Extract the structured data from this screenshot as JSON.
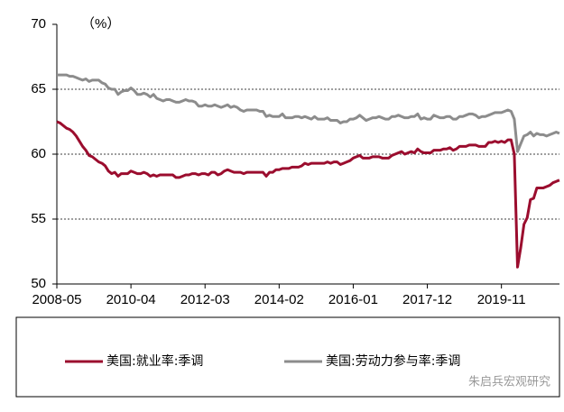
{
  "chart_data": {
    "type": "line",
    "y_unit": "（%）",
    "ylim": [
      50,
      70
    ],
    "yticks": [
      50,
      55,
      60,
      65,
      70
    ],
    "grid": true,
    "categories": [
      "2008-05",
      null,
      null,
      null,
      null,
      null,
      null,
      null,
      null,
      null,
      null,
      null,
      null,
      null,
      null,
      null,
      null,
      null,
      null,
      null,
      null,
      null,
      null,
      "2010-04",
      null,
      null,
      null,
      null,
      null,
      null,
      null,
      null,
      null,
      null,
      null,
      null,
      null,
      null,
      null,
      null,
      null,
      null,
      null,
      null,
      null,
      null,
      "2012-03",
      null,
      null,
      null,
      null,
      null,
      null,
      null,
      null,
      null,
      null,
      null,
      null,
      null,
      null,
      null,
      null,
      null,
      null,
      null,
      null,
      null,
      null,
      "2014-02",
      null,
      null,
      null,
      null,
      null,
      null,
      null,
      null,
      null,
      null,
      null,
      null,
      null,
      null,
      null,
      null,
      null,
      null,
      null,
      null,
      null,
      null,
      "2016-01",
      null,
      null,
      null,
      null,
      null,
      null,
      null,
      null,
      null,
      null,
      null,
      null,
      null,
      null,
      null,
      null,
      null,
      null,
      null,
      null,
      null,
      null,
      "2017-12",
      null,
      null,
      null,
      null,
      null,
      null,
      null,
      null,
      null,
      null,
      null,
      null,
      null,
      null,
      null,
      null,
      null,
      null,
      null,
      null,
      null,
      null,
      "2019-11",
      null,
      null,
      null,
      null,
      null,
      null,
      null,
      null,
      null,
      null,
      null,
      null,
      null,
      null,
      null,
      null,
      null,
      null
    ],
    "series": [
      {
        "name": "美国:就业率:季调",
        "color": "#9b0d2e",
        "values": [
          62.5,
          62.4,
          62.2,
          62.0,
          61.9,
          61.7,
          61.4,
          61.0,
          60.6,
          60.3,
          59.9,
          59.8,
          59.6,
          59.4,
          59.3,
          59.1,
          58.7,
          58.5,
          58.6,
          58.3,
          58.5,
          58.5,
          58.5,
          58.7,
          58.6,
          58.5,
          58.5,
          58.6,
          58.5,
          58.3,
          58.4,
          58.3,
          58.4,
          58.4,
          58.4,
          58.4,
          58.4,
          58.2,
          58.2,
          58.3,
          58.4,
          58.4,
          58.5,
          58.5,
          58.4,
          58.5,
          58.5,
          58.4,
          58.6,
          58.6,
          58.4,
          58.5,
          58.7,
          58.8,
          58.7,
          58.6,
          58.6,
          58.6,
          58.5,
          58.6,
          58.6,
          58.6,
          58.6,
          58.6,
          58.6,
          58.3,
          58.6,
          58.6,
          58.8,
          58.8,
          58.9,
          58.9,
          58.9,
          59.0,
          59.0,
          59.0,
          59.1,
          59.3,
          59.2,
          59.3,
          59.3,
          59.3,
          59.3,
          59.3,
          59.4,
          59.3,
          59.4,
          59.4,
          59.2,
          59.3,
          59.4,
          59.5,
          59.7,
          59.8,
          59.9,
          59.7,
          59.7,
          59.7,
          59.8,
          59.8,
          59.8,
          59.7,
          59.7,
          59.7,
          59.9,
          60.0,
          60.1,
          60.2,
          60.0,
          60.1,
          60.2,
          60.1,
          60.4,
          60.2,
          60.1,
          60.1,
          60.1,
          60.3,
          60.3,
          60.3,
          60.4,
          60.4,
          60.5,
          60.3,
          60.4,
          60.6,
          60.6,
          60.6,
          60.7,
          60.7,
          60.7,
          60.6,
          60.6,
          60.6,
          60.9,
          60.9,
          61.0,
          60.9,
          61.0,
          60.9,
          61.1,
          61.1,
          60.0,
          51.3,
          52.8,
          54.6,
          55.1,
          56.5,
          56.6,
          57.4,
          57.4,
          57.4,
          57.5,
          57.6,
          57.8,
          57.9,
          58.0
        ]
      },
      {
        "name": "美国:劳动力参与率:季调",
        "color": "#8c8c8c",
        "values": [
          66.1,
          66.1,
          66.1,
          66.1,
          66.0,
          66.0,
          65.9,
          65.8,
          65.7,
          65.8,
          65.6,
          65.7,
          65.7,
          65.7,
          65.5,
          65.4,
          65.1,
          65.0,
          65.0,
          64.6,
          64.8,
          64.9,
          64.9,
          65.1,
          64.9,
          64.6,
          64.6,
          64.7,
          64.6,
          64.4,
          64.6,
          64.3,
          64.2,
          64.1,
          64.2,
          64.2,
          64.1,
          64.0,
          64.0,
          64.1,
          64.2,
          64.1,
          64.1,
          64.0,
          63.7,
          63.7,
          63.8,
          63.7,
          63.7,
          63.8,
          63.7,
          63.6,
          63.7,
          63.8,
          63.6,
          63.7,
          63.6,
          63.4,
          63.3,
          63.4,
          63.4,
          63.4,
          63.4,
          63.3,
          63.3,
          62.9,
          63.0,
          62.9,
          62.9,
          62.9,
          63.1,
          62.8,
          62.8,
          62.8,
          62.9,
          62.9,
          62.8,
          62.9,
          62.8,
          62.7,
          62.9,
          62.7,
          62.7,
          62.7,
          62.8,
          62.6,
          62.6,
          62.6,
          62.4,
          62.5,
          62.5,
          62.7,
          62.7,
          62.8,
          63.0,
          62.8,
          62.6,
          62.7,
          62.8,
          62.8,
          62.9,
          62.8,
          62.7,
          62.7,
          62.9,
          62.9,
          63.0,
          62.9,
          62.8,
          62.8,
          62.9,
          62.9,
          63.1,
          62.7,
          62.8,
          62.7,
          62.7,
          63.0,
          62.9,
          62.8,
          62.8,
          62.9,
          62.9,
          62.7,
          62.7,
          62.9,
          62.9,
          63.0,
          63.1,
          63.1,
          63.0,
          62.8,
          62.9,
          62.9,
          63.0,
          63.1,
          63.2,
          63.2,
          63.2,
          63.3,
          63.4,
          63.3,
          62.7,
          60.2,
          60.8,
          61.4,
          61.5,
          61.7,
          61.4,
          61.6,
          61.5,
          61.5,
          61.4,
          61.5,
          61.6,
          61.7,
          61.6
        ]
      }
    ],
    "watermark": "朱启兵宏观研究"
  }
}
